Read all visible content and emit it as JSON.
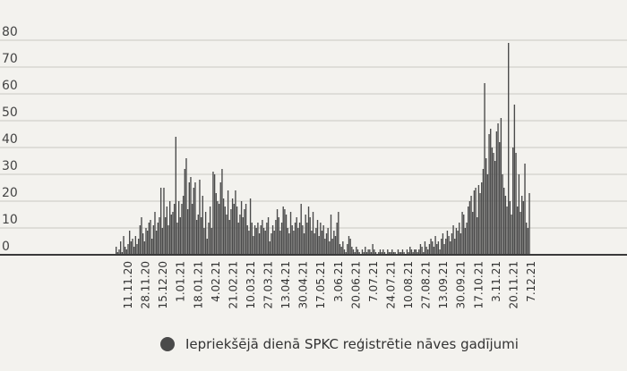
{
  "chart_data": {
    "type": "bar",
    "title": "",
    "xlabel": "",
    "ylabel": "",
    "ylim": [
      0,
      80
    ],
    "y_ticks": [
      "80",
      "70",
      "60",
      "50",
      "40",
      "30",
      "20",
      "10",
      "0"
    ],
    "grid": true,
    "legend_position": "bottom",
    "colors": {
      "bar": "#4a4a4a",
      "baseline": "#3a3a3a",
      "grid": "#c9c8c3",
      "background": "#f3f2ee"
    },
    "x_tick_labels": [
      "11.11.20",
      "28.11.20",
      "15.12.20",
      "1.01.21",
      "18.01.21",
      "4.02.21",
      "21.02.21",
      "10.03.21",
      "27.03.21",
      "13.04.21",
      "30.04.21",
      "17.05.21",
      "3.06.21",
      "20.06.21",
      "7.07.21",
      "24.07.21",
      "10.08.21",
      "27.08.21",
      "13.09.21",
      "30.09.21",
      "17.10.21",
      "3.11.21",
      "20.11.21",
      "7.12.21"
    ],
    "series": [
      {
        "name": "Iepriekšējā dienā SPKC reģistrētie nāves gadījumi",
        "values": [
          3,
          1,
          2,
          5,
          1,
          7,
          3,
          2,
          4,
          9,
          5,
          6,
          3,
          7,
          4,
          6,
          11,
          14,
          8,
          5,
          10,
          9,
          12,
          13,
          6,
          11,
          16,
          9,
          12,
          14,
          25,
          10,
          25,
          14,
          18,
          11,
          20,
          15,
          16,
          19,
          44,
          12,
          20,
          14,
          19,
          22,
          32,
          36,
          17,
          27,
          29,
          19,
          25,
          27,
          13,
          15,
          28,
          14,
          22,
          10,
          16,
          6,
          12,
          18,
          10,
          31,
          30,
          23,
          20,
          19,
          27,
          32,
          21,
          18,
          15,
          24,
          13,
          17,
          21,
          19,
          24,
          18,
          12,
          15,
          20,
          14,
          17,
          19,
          11,
          9,
          21,
          12,
          7,
          11,
          10,
          12,
          8,
          11,
          13,
          10,
          9,
          12,
          14,
          5,
          8,
          11,
          9,
          13,
          17,
          14,
          9,
          12,
          18,
          17,
          15,
          10,
          8,
          16,
          11,
          9,
          12,
          14,
          10,
          12,
          19,
          11,
          8,
          15,
          12,
          18,
          14,
          9,
          16,
          8,
          10,
          13,
          7,
          12,
          9,
          11,
          6,
          8,
          10,
          5,
          15,
          6,
          9,
          7,
          12,
          16,
          4,
          3,
          5,
          2,
          1,
          4,
          7,
          6,
          3,
          2,
          1,
          3,
          2,
          1,
          0,
          2,
          1,
          3,
          1,
          2,
          2,
          1,
          4,
          2,
          1,
          0,
          1,
          2,
          1,
          2,
          1,
          0,
          2,
          1,
          1,
          2,
          1,
          1,
          0,
          2,
          1,
          1,
          2,
          1,
          0,
          2,
          1,
          3,
          2,
          1,
          2,
          2,
          1,
          2,
          4,
          3,
          1,
          5,
          3,
          2,
          4,
          6,
          5,
          3,
          7,
          4,
          5,
          2,
          6,
          8,
          4,
          6,
          9,
          7,
          5,
          8,
          11,
          6,
          10,
          9,
          12,
          8,
          16,
          15,
          10,
          12,
          18,
          20,
          22,
          16,
          24,
          25,
          14,
          26,
          23,
          27,
          32,
          64,
          36,
          30,
          45,
          47,
          40,
          38,
          35,
          46,
          49,
          42,
          51,
          30,
          25,
          22,
          18,
          79,
          20,
          15,
          40,
          56,
          38,
          18,
          30,
          16,
          22,
          20,
          34,
          12,
          10,
          23
        ]
      }
    ]
  }
}
